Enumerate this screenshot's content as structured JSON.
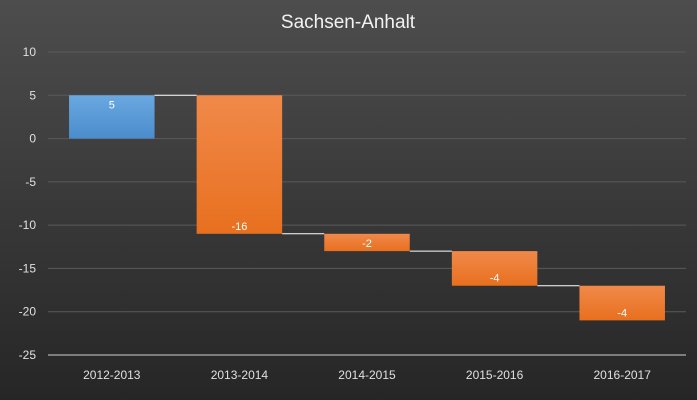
{
  "chart_data": {
    "type": "bar",
    "subtype": "waterfall",
    "title": "Sachsen-Anhalt",
    "xlabel": "",
    "ylabel": "",
    "categories": [
      "2012-2013",
      "2013-2014",
      "2014-2015",
      "2015-2016",
      "2016-2017"
    ],
    "values": [
      5,
      -16,
      -2,
      -4,
      -4
    ],
    "data_labels": [
      "5",
      "-16",
      "-2",
      "-4",
      "-4"
    ],
    "y_ticks": [
      "10",
      "5",
      "0",
      "-5",
      "-10",
      "-15",
      "-20",
      "-25"
    ],
    "ylim": [
      -25,
      10
    ],
    "grid": true,
    "legend": "none",
    "colors": {
      "background_top": "#4d4d4d",
      "background_bottom": "#262626",
      "increase": "#5b9bd5",
      "decrease": "#ed7d31",
      "gridline": "#5a5a5a",
      "text": "#e0e0e0"
    }
  }
}
